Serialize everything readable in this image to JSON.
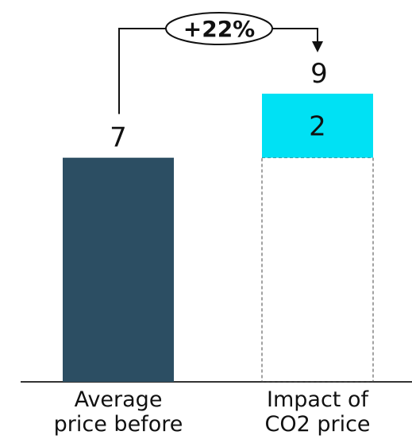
{
  "chart_data": {
    "type": "bar",
    "subtype": "waterfall",
    "categories": [
      "Average price before",
      "Impact of CO2 price"
    ],
    "category_lines": [
      [
        "Average",
        "price before"
      ],
      [
        "Impact of",
        "CO2 price"
      ]
    ],
    "series": [
      {
        "values": [
          7,
          2
        ]
      }
    ],
    "total_after": 9,
    "data_labels": [
      "7",
      "2"
    ],
    "total_label": "9",
    "change_annotation": "+22%",
    "ylim": [
      0,
      9
    ],
    "grid": false,
    "legend": "none",
    "colors": {
      "base": "#2c4e63",
      "increment": "#00e1f4",
      "dashed_outline": "#444444",
      "axis": "#333333",
      "text": "#111111"
    }
  }
}
